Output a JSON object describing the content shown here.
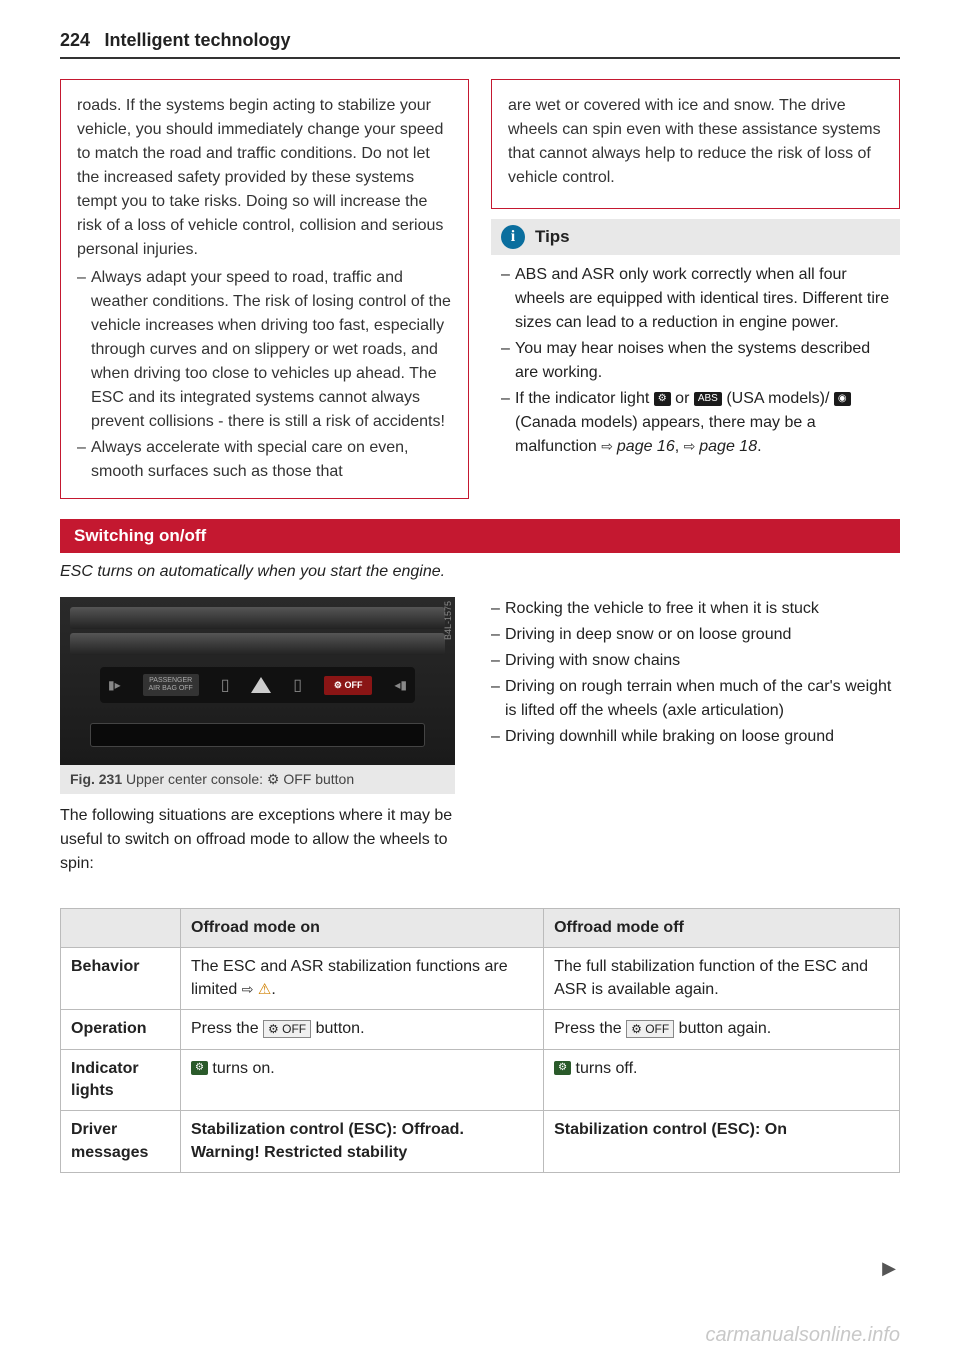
{
  "header": {
    "page_number": "224",
    "title": "Intelligent technology"
  },
  "warning_left": {
    "intro": "roads. If the systems begin acting to stabilize your vehicle, you should immediately change your speed to match the road and traffic conditions. Do not let the increased safety provided by these systems tempt you to take risks. Doing so will increase the risk of a loss of vehicle control, collision and serious personal injuries.",
    "item1": "Always adapt your speed to road, traffic and weather conditions. The risk of losing control of the vehicle increases when driving too fast, especially through curves and on slippery or wet roads, and when driving too close to vehicles up ahead. The ESC and its integrated systems cannot always prevent collisions - there is still a risk of accidents!",
    "item2": "Always accelerate with special care on even, smooth surfaces such as those that"
  },
  "warning_right": {
    "text": "are wet or covered with ice and snow. The drive wheels can spin even with these assistance systems that cannot always help to reduce the risk of loss of vehicle control."
  },
  "tips": {
    "title": "Tips",
    "item1": "ABS and ASR only work correctly when all four wheels are equipped with identical tires. Different tire sizes can lead to a reduction in engine power.",
    "item2": "You may hear noises when the systems described are working.",
    "item3_pre": "If the indicator light ",
    "item3_mid1": " or ",
    "item3_abs": "ABS",
    "item3_mid2": " (USA models)/",
    "item3_post": " (Canada models) appears, there may be a malfunction ",
    "item3_ref1": "page 16",
    "item3_ref2": "page 18"
  },
  "section": {
    "bar": "Switching on/off",
    "subtitle": "ESC turns on automatically when you start the engine."
  },
  "figure": {
    "side_label": "B4L-1575",
    "panel_passenger": "PASSENGER\nAIR BAG OFF",
    "panel_off": "⚙ OFF",
    "caption_num": "Fig. 231",
    "caption_text": "Upper center console: ⚙ OFF button"
  },
  "body_after_fig": "The following situations are exceptions where it may be useful to switch on offroad mode to allow the wheels to spin:",
  "right_list": {
    "i1": "Rocking the vehicle to free it when it is stuck",
    "i2": "Driving in deep snow or on loose ground",
    "i3": "Driving with snow chains",
    "i4": "Driving on rough terrain when much of the car's weight is lifted off the wheels (axle articulation)",
    "i5": "Driving downhill while braking on loose ground"
  },
  "table": {
    "head_on": "Offroad mode on",
    "head_off": "Offroad mode off",
    "row_behavior": "Behavior",
    "behavior_on_pre": "The ESC and ASR stabilization functions are limited ",
    "behavior_off": "The full stabilization function of the ESC and ASR is available again.",
    "row_operation": "Operation",
    "op_on_pre": "Press the ",
    "op_on_btn": "⚙ OFF",
    "op_on_post": " button.",
    "op_off_pre": "Press the ",
    "op_off_btn": "⚙ OFF",
    "op_off_post": " button again.",
    "row_indicator": "Indicator lights",
    "ind_on_post": " turns on.",
    "ind_off_post": " turns off.",
    "row_driver": "Driver messages",
    "driver_on": "Stabilization control (ESC): Offroad. Warning! Restricted stability",
    "driver_off": "Stabilization control (ESC): On"
  },
  "watermark": "carmanualsonline.info"
}
